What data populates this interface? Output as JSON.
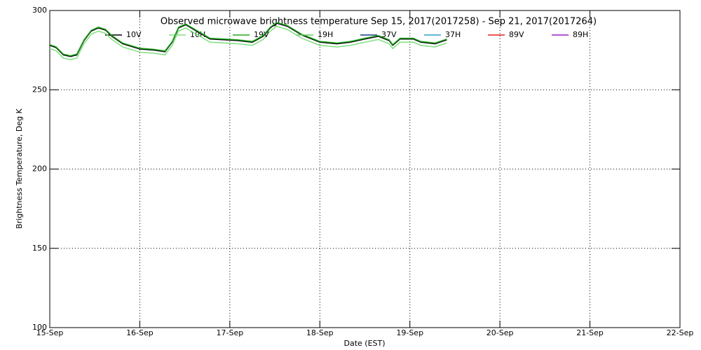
{
  "chart_data": {
    "type": "line",
    "title": "Observed microwave brightness temperature Sep 15, 2017(2017258) - Sep 21, 2017(2017264)",
    "x_label": "Date (EST)",
    "y_label": "Brightness Temperature, Deg K",
    "x": [
      15.0,
      15.07,
      15.15,
      15.23,
      15.3,
      15.38,
      15.46,
      15.54,
      15.62,
      15.69,
      15.81,
      16.0,
      16.16,
      16.28,
      16.36,
      16.43,
      16.51,
      16.63,
      16.78,
      16.94,
      17.09,
      17.25,
      17.37,
      17.45,
      17.52,
      17.64,
      17.8,
      18.0,
      18.19,
      18.34,
      18.5,
      18.65,
      18.77,
      18.81,
      18.89,
      19.04,
      19.12,
      19.28,
      19.41
    ],
    "series": [
      {
        "name": "10V",
        "color": "#000000",
        "values": [
          278,
          276.6,
          272,
          271,
          272,
          281,
          287,
          289,
          287.6,
          283.7,
          279,
          275.7,
          275,
          274,
          280,
          289,
          291,
          287,
          282,
          281.5,
          281,
          280,
          283.7,
          289,
          292,
          290,
          284.5,
          280,
          279,
          280,
          282,
          283.7,
          281,
          278,
          282,
          282,
          280,
          279,
          281.5
        ]
      },
      {
        "name": "10H",
        "color": "#7ee07e",
        "values": [
          276,
          274.6,
          270,
          269,
          270,
          279,
          285,
          287,
          285.6,
          281.7,
          277,
          273.7,
          273,
          272,
          278,
          287,
          289,
          285,
          280,
          279.5,
          279,
          278,
          281.7,
          287,
          290,
          288,
          282.5,
          278,
          277,
          278,
          280,
          281.7,
          279,
          276,
          280,
          280,
          278,
          277,
          279.5
        ]
      },
      {
        "name": "19V",
        "color": "#22aa22",
        "values": [
          278.5,
          277.1,
          272.5,
          271.5,
          272.5,
          281.5,
          287.5,
          289.5,
          288.1,
          284.2,
          279.5,
          276.2,
          275.5,
          274.5,
          280.5,
          289.5,
          291.5,
          287.5,
          282.5,
          282,
          281.5,
          280.5,
          284.2,
          289.5,
          292.5,
          290.5,
          285,
          280.5,
          279.5,
          280.5,
          282.5,
          284.2,
          281.5,
          278.5,
          282.5,
          282.5,
          280.5,
          279.5,
          282
        ]
      },
      {
        "name": "19H",
        "color": "#66cc66",
        "values": [
          null,
          null,
          null,
          null,
          null,
          null,
          null,
          null,
          null,
          null,
          null,
          null,
          null,
          null,
          null,
          null,
          null,
          null,
          null,
          null,
          null,
          null,
          null,
          null,
          null,
          null,
          null,
          null,
          null,
          null,
          null,
          null,
          null,
          null,
          null,
          null,
          null,
          null,
          null
        ]
      },
      {
        "name": "37V",
        "color": "#1f3a8a",
        "values": [
          null,
          null,
          null,
          null,
          null,
          null,
          null,
          null,
          null,
          null,
          null,
          null,
          null,
          null,
          null,
          null,
          null,
          null,
          null,
          null,
          null,
          null,
          null,
          null,
          null,
          null,
          null,
          null,
          null,
          null,
          null,
          null,
          null,
          null,
          null,
          null,
          null,
          null,
          null
        ]
      },
      {
        "name": "37H",
        "color": "#2aa0c8",
        "values": [
          null,
          null,
          null,
          null,
          null,
          null,
          null,
          null,
          null,
          null,
          null,
          null,
          null,
          null,
          null,
          null,
          null,
          null,
          null,
          null,
          null,
          null,
          null,
          null,
          null,
          null,
          null,
          null,
          null,
          null,
          null,
          null,
          null,
          null,
          null,
          null,
          null,
          null,
          null
        ]
      },
      {
        "name": "89V",
        "color": "#e02020",
        "values": [
          null,
          null,
          null,
          null,
          null,
          null,
          null,
          null,
          null,
          null,
          null,
          null,
          null,
          null,
          null,
          null,
          null,
          null,
          null,
          null,
          null,
          null,
          null,
          null,
          null,
          null,
          null,
          null,
          null,
          null,
          null,
          null,
          null,
          null,
          null,
          null,
          null,
          null,
          null
        ]
      },
      {
        "name": "89H",
        "color": "#a020c0",
        "values": [
          null,
          null,
          null,
          null,
          null,
          null,
          null,
          null,
          null,
          null,
          null,
          null,
          null,
          null,
          null,
          null,
          null,
          null,
          null,
          null,
          null,
          null,
          null,
          null,
          null,
          null,
          null,
          null,
          null,
          null,
          null,
          null,
          null,
          null,
          null,
          null,
          null,
          null,
          null
        ]
      }
    ],
    "xlim": [
      15,
      22
    ],
    "xticks": [
      {
        "value": 15,
        "label": "15-Sep"
      },
      {
        "value": 16,
        "label": "16-Sep"
      },
      {
        "value": 17,
        "label": "17-Sep"
      },
      {
        "value": 18,
        "label": "18-Sep"
      },
      {
        "value": 19,
        "label": "19-Sep"
      },
      {
        "value": 20,
        "label": "20-Sep"
      },
      {
        "value": 21,
        "label": "21-Sep"
      },
      {
        "value": 22,
        "label": "22-Sep"
      }
    ],
    "ylim": [
      100,
      300
    ],
    "yticks": [
      100,
      150,
      200,
      250,
      300
    ],
    "grid": true
  }
}
